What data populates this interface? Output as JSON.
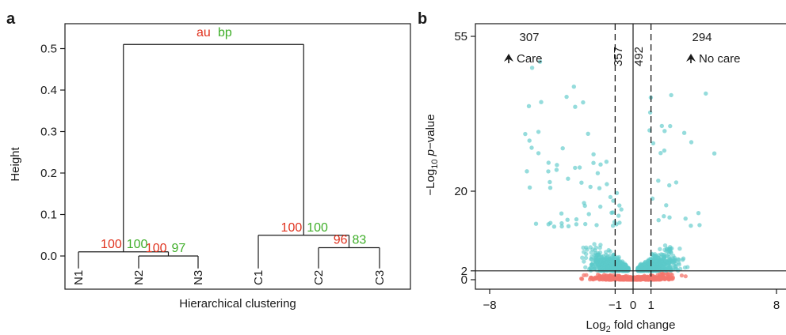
{
  "colors": {
    "au": "#e0321e",
    "bp": "#3fae29",
    "significant": "#5cc9c9",
    "not_significant": "#f4766c"
  },
  "chart_data": [
    {
      "panel": "a",
      "type": "dendrogram",
      "xlabel": "Hierarchical clustering",
      "ylabel": "Height",
      "ylim": [
        -0.08,
        0.56
      ],
      "y_ticks": [
        "0.0",
        "0.1",
        "0.2",
        "0.3",
        "0.4",
        "0.5"
      ],
      "leaves": [
        "N1",
        "N2",
        "N3",
        "C1",
        "C2",
        "C3"
      ],
      "legend": {
        "au": "au",
        "bp": "bp"
      },
      "merges": [
        {
          "children": [
            "N2",
            "N3"
          ],
          "height": 0.0,
          "au": "100",
          "bp": "97"
        },
        {
          "children": [
            "N1",
            "N2+N3"
          ],
          "height": 0.01,
          "au": "100",
          "bp": "100"
        },
        {
          "children": [
            "C2",
            "C3"
          ],
          "height": 0.02,
          "au": "96",
          "bp": "83"
        },
        {
          "children": [
            "C1",
            "C2+C3"
          ],
          "height": 0.05,
          "au": "100",
          "bp": "100"
        },
        {
          "children": [
            "N",
            "C"
          ],
          "height": 0.51
        }
      ]
    },
    {
      "panel": "b",
      "type": "scatter",
      "xlabel_prefix": "Log",
      "xlabel_sub": "2",
      "xlabel_rest": " fold change",
      "ylabel_prefix": "−Log",
      "ylabel_sub": "10",
      "ylabel_p": "p",
      "ylabel_rest": "−value",
      "x_ticks": [
        "−8",
        "−1",
        "0",
        "1",
        "8"
      ],
      "y_ticks": [
        "0",
        "2",
        "20",
        "55"
      ],
      "xlim": [
        -9,
        8.6
      ],
      "ylim": [
        -1.2,
        58
      ],
      "threshold_fc": 1,
      "threshold_p": 2,
      "counts": {
        "left": "307",
        "right": "294",
        "mid_left": "357",
        "mid_right": "492"
      },
      "labels": {
        "left": "Care",
        "right": "No care"
      }
    }
  ]
}
